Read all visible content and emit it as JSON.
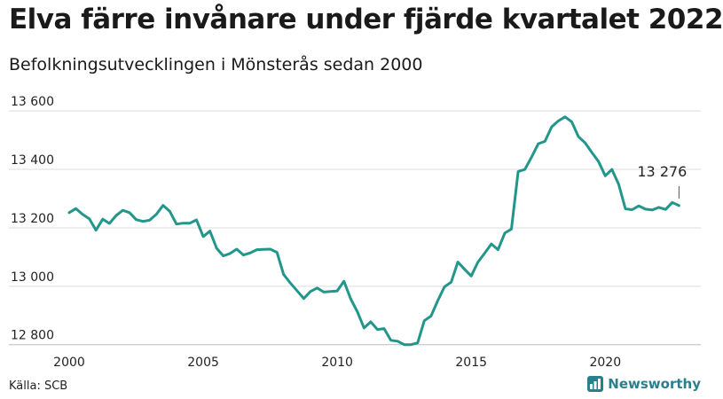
{
  "title": "Elva färre invånare under fjärde kvartalet 2022",
  "subtitle": "Befolkningsutvecklingen i Mönsterås sedan 2000",
  "source": "Källa: SCB",
  "brand": {
    "name": "Newsworthy",
    "icon": "chart-bars-icon",
    "color": "#2a7f8c"
  },
  "colors": {
    "line": "#22968a",
    "grid": "#dddddd",
    "axis": "#bbbbbb",
    "annotation_line": "#555555"
  },
  "chart_data": {
    "type": "line",
    "title": "Elva färre invånare under fjärde kvartalet 2022",
    "subtitle": "Befolkningsutvecklingen i Mönsterås sedan 2000",
    "xlabel": "",
    "ylabel": "",
    "xlim": [
      2000,
      2023.3
    ],
    "ylim": [
      12790,
      13640
    ],
    "x_ticks": [
      2000,
      2005,
      2010,
      2015,
      2020
    ],
    "x_tick_labels": [
      "2000",
      "2005",
      "2010",
      "2015",
      "2020"
    ],
    "y_ticks": [
      12800,
      13000,
      13200,
      13400,
      13600
    ],
    "y_tick_labels": [
      "12 800",
      "13 000",
      "13 200",
      "13 400",
      "13 600"
    ],
    "grid": "horizontal",
    "legend": "none",
    "annotation": {
      "text": "13 276",
      "x": 2022.75,
      "y": 13276
    },
    "series": [
      {
        "x": [
          2000,
          2000.25,
          2000.5,
          2000.75,
          2001,
          2001.25,
          2001.5,
          2001.75,
          2002,
          2002.25,
          2002.5,
          2002.75,
          2003,
          2003.25,
          2003.5,
          2003.75,
          2004,
          2004.25,
          2004.5,
          2004.75,
          2005,
          2005.25,
          2005.5,
          2005.75,
          2006,
          2006.25,
          2006.5,
          2006.75,
          2007,
          2007.25,
          2007.5,
          2007.75,
          2008,
          2008.25,
          2008.5,
          2008.75,
          2009,
          2009.25,
          2009.5,
          2009.75,
          2010,
          2010.25,
          2010.5,
          2010.75,
          2011,
          2011.25,
          2011.5,
          2011.75,
          2012,
          2012.25,
          2012.5,
          2012.75,
          2013,
          2013.25,
          2013.5,
          2013.75,
          2014,
          2014.25,
          2014.5,
          2014.75,
          2015,
          2015.25,
          2015.5,
          2015.75,
          2016,
          2016.25,
          2016.5,
          2016.75,
          2017,
          2017.25,
          2017.5,
          2017.75,
          2018,
          2018.25,
          2018.5,
          2018.75,
          2019,
          2019.25,
          2019.5,
          2019.75,
          2020,
          2020.25,
          2020.5,
          2020.75,
          2021,
          2021.25,
          2021.5,
          2021.75,
          2022,
          2022.25,
          2022.5,
          2022.75
        ],
        "y": [
          13252,
          13266,
          13246,
          13231,
          13192,
          13230,
          13215,
          13242,
          13260,
          13252,
          13228,
          13222,
          13226,
          13246,
          13277,
          13257,
          13213,
          13216,
          13216,
          13227,
          13170,
          13189,
          13130,
          13104,
          13112,
          13127,
          13107,
          13114,
          13125,
          13126,
          13127,
          13116,
          13040,
          13011,
          12985,
          12958,
          12982,
          12994,
          12980,
          12982,
          12984,
          13017,
          12957,
          12913,
          12857,
          12878,
          12852,
          12855,
          12815,
          12812,
          12800,
          12800,
          12806,
          12882,
          12898,
          12951,
          12998,
          13014,
          13083,
          13058,
          13035,
          13083,
          13113,
          13145,
          13125,
          13182,
          13196,
          13393,
          13400,
          13442,
          13488,
          13496,
          13546,
          13566,
          13580,
          13563,
          13512,
          13491,
          13458,
          13427,
          13378,
          13400,
          13349,
          13265,
          13262,
          13275,
          13264,
          13261,
          13270,
          13263,
          13287,
          13276
        ]
      }
    ]
  }
}
